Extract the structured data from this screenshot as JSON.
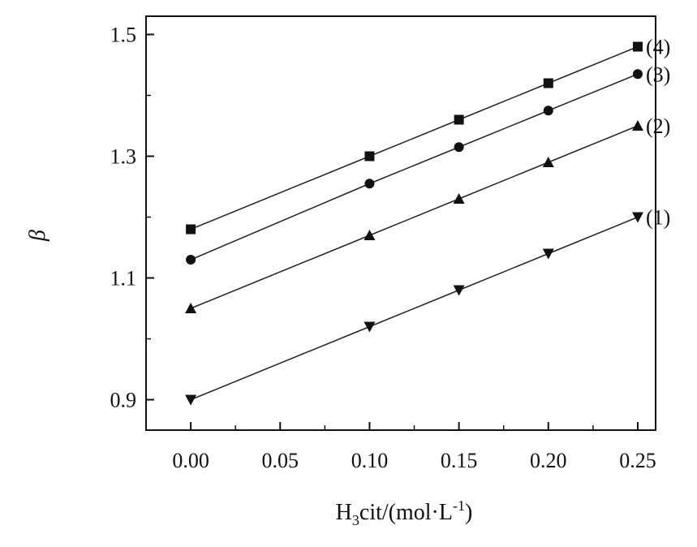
{
  "chart_data": {
    "type": "line",
    "xlabel": {
      "main": "H",
      "sub": "3",
      "rest": "cit/(mol·L",
      "sup": "-1",
      "end": ")"
    },
    "ylabel": "β",
    "xlim": [
      -0.025,
      0.26
    ],
    "ylim": [
      0.85,
      1.53
    ],
    "x_ticks": [
      "0.00",
      "0.05",
      "0.10",
      "0.15",
      "0.20",
      "0.25"
    ],
    "y_ticks": [
      "0.9",
      "1.1",
      "1.3",
      "1.5"
    ],
    "x": [
      0.0,
      0.1,
      0.15,
      0.2,
      0.25
    ],
    "series": [
      {
        "name": "(1)",
        "marker": "triangle-down",
        "values": [
          0.9,
          1.02,
          1.08,
          1.14,
          1.2
        ]
      },
      {
        "name": "(2)",
        "marker": "triangle-up",
        "values": [
          1.05,
          1.17,
          1.23,
          1.29,
          1.35
        ]
      },
      {
        "name": "(3)",
        "marker": "circle",
        "values": [
          1.13,
          1.255,
          1.315,
          1.375,
          1.435
        ]
      },
      {
        "name": "(4)",
        "marker": "square",
        "values": [
          1.18,
          1.3,
          1.36,
          1.42,
          1.48
        ]
      }
    ],
    "grid": false,
    "legend": "inline labels at right end of each line"
  }
}
